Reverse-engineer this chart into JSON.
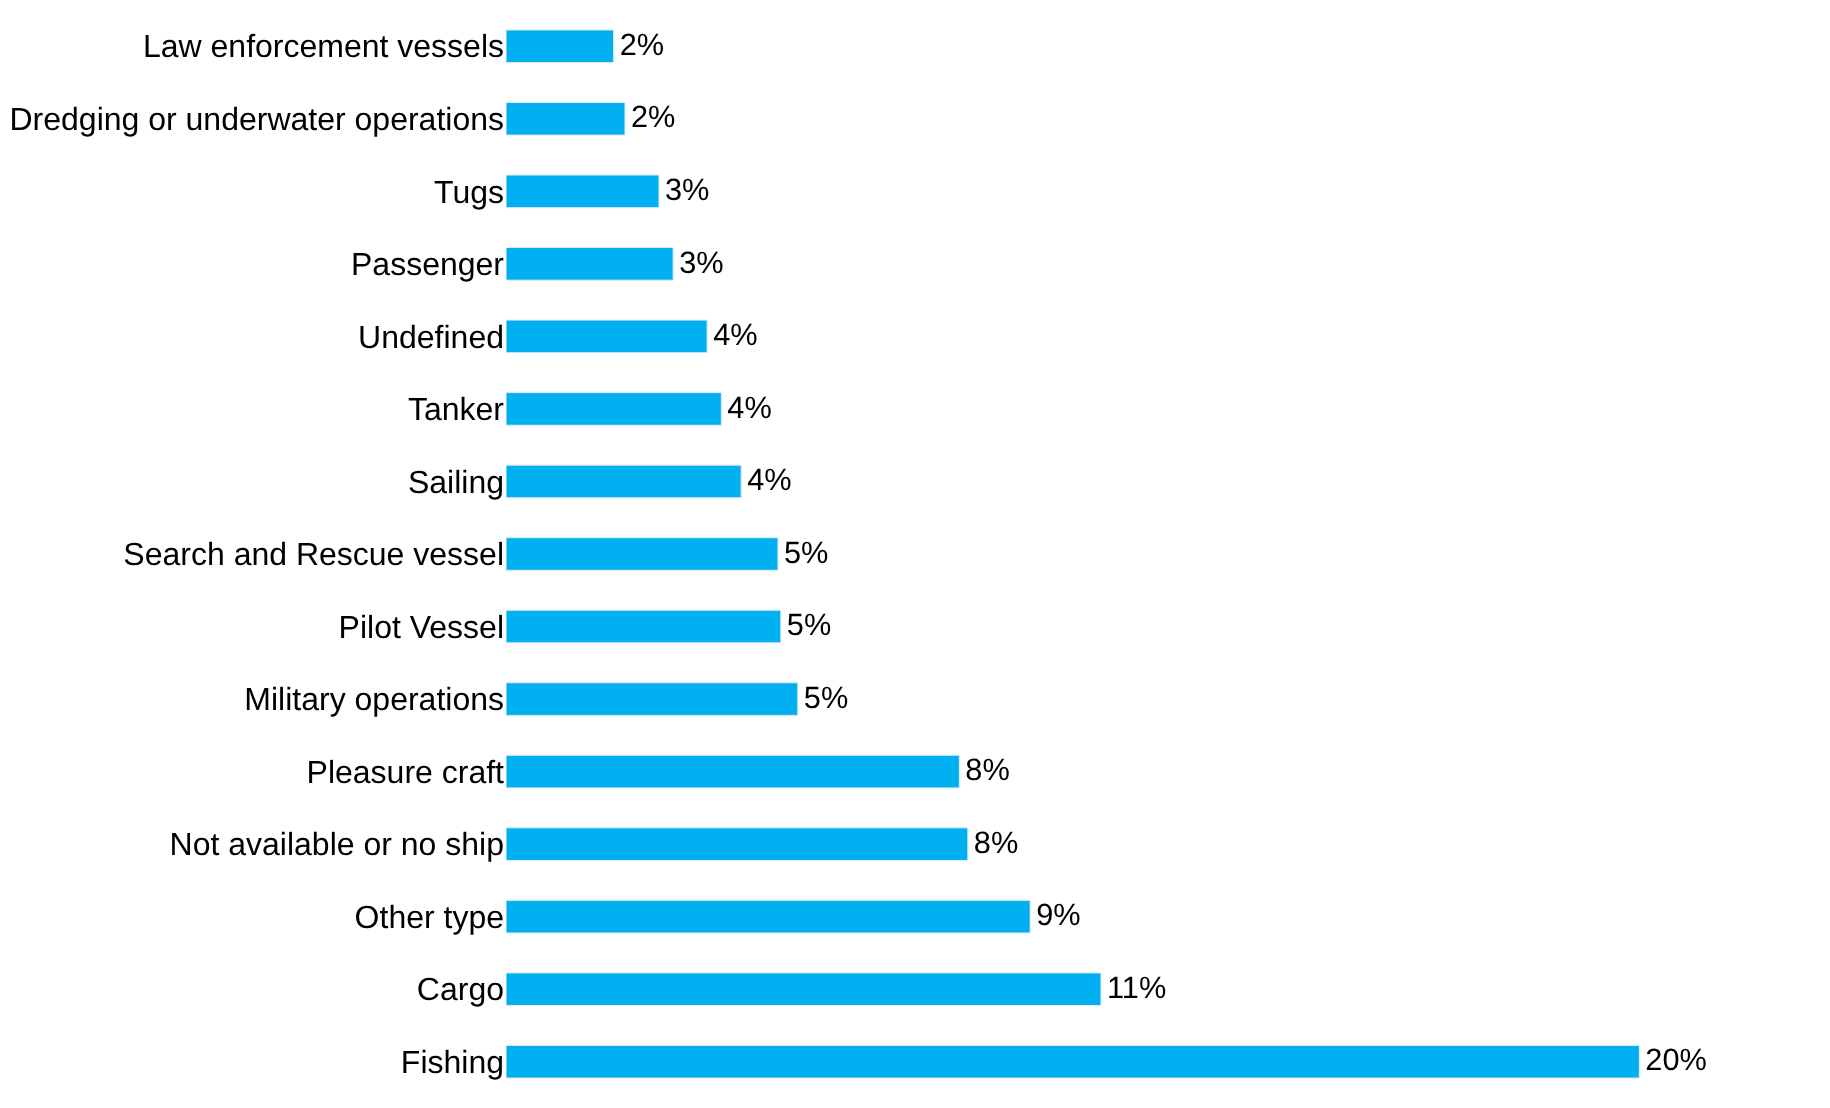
{
  "chart_data": {
    "type": "bar",
    "orientation": "horizontal",
    "categories": [
      "Law enforcement vessels",
      "Dredging or underwater operations",
      "Tugs",
      "Passenger",
      "Undefined",
      "Tanker",
      "Sailing",
      "Search and Rescue vessel",
      "Pilot Vessel",
      "Military operations",
      "Pleasure craft",
      "Not available or no ship",
      "Other type",
      "Cargo",
      "Fishing"
    ],
    "values": [
      1.9,
      2.1,
      2.7,
      2.95,
      3.55,
      3.8,
      4.15,
      4.8,
      4.85,
      5.15,
      8.0,
      8.15,
      9.25,
      10.5,
      20.0
    ],
    "value_labels": [
      "2%",
      "2%",
      "3%",
      "3%",
      "4%",
      "4%",
      "4%",
      "5%",
      "5%",
      "5%",
      "8%",
      "8%",
      "9%",
      "11%",
      "20%"
    ],
    "color": "#00b0f0",
    "legend": false
  }
}
